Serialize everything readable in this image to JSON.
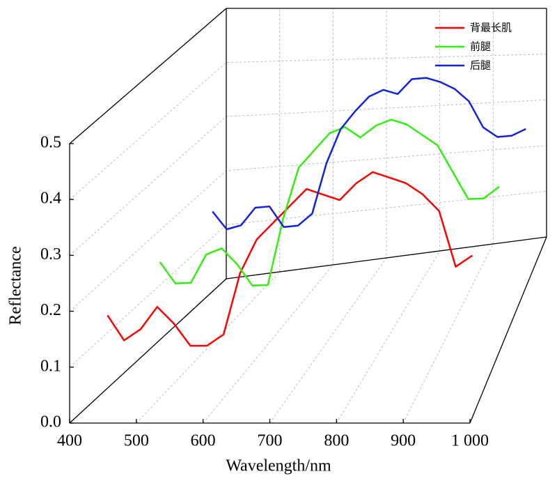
{
  "chart_data": {
    "type": "line",
    "xlabel": "Wavelength/nm",
    "ylabel": "Reflectance",
    "x": [
      450,
      475,
      500,
      525,
      550,
      575,
      600,
      625,
      650,
      675,
      700,
      725,
      750,
      775,
      800,
      825,
      850,
      875,
      900,
      925,
      950,
      975,
      1000
    ],
    "series": [
      {
        "name": "背最长肌",
        "color": "#ff0000",
        "values": [
          0.185,
          0.14,
          0.16,
          0.2,
          0.17,
          0.13,
          0.13,
          0.15,
          0.26,
          0.32,
          0.35,
          0.38,
          0.41,
          0.4,
          0.39,
          0.42,
          0.44,
          0.43,
          0.42,
          0.4,
          0.37,
          0.27,
          0.29
        ]
      },
      {
        "name": "前腿",
        "color": "#33ee11",
        "values": [
          0.19,
          0.15,
          0.15,
          0.2,
          0.21,
          0.18,
          0.14,
          0.14,
          0.26,
          0.35,
          0.38,
          0.41,
          0.42,
          0.4,
          0.42,
          0.43,
          0.42,
          0.4,
          0.38,
          0.33,
          0.28,
          0.28,
          0.3
        ]
      },
      {
        "name": "后腿",
        "color": "#1122dd",
        "values": [
          0.19,
          0.155,
          0.16,
          0.19,
          0.19,
          0.15,
          0.15,
          0.17,
          0.26,
          0.32,
          0.35,
          0.375,
          0.385,
          0.375,
          0.4,
          0.4,
          0.39,
          0.375,
          0.35,
          0.3,
          0.28,
          0.28,
          0.29
        ]
      }
    ],
    "xlim": [
      400,
      1000
    ],
    "xticks": [
      400,
      500,
      600,
      700,
      800,
      900,
      {
        "value": 1000,
        "label": "1 000"
      }
    ],
    "ylim": [
      0,
      0.5
    ],
    "yticks": [
      {
        "value": 0,
        "label": "0.0"
      },
      0.1,
      0.2,
      0.3,
      0.4,
      0.5
    ],
    "grid": true,
    "legend": "upper right"
  }
}
